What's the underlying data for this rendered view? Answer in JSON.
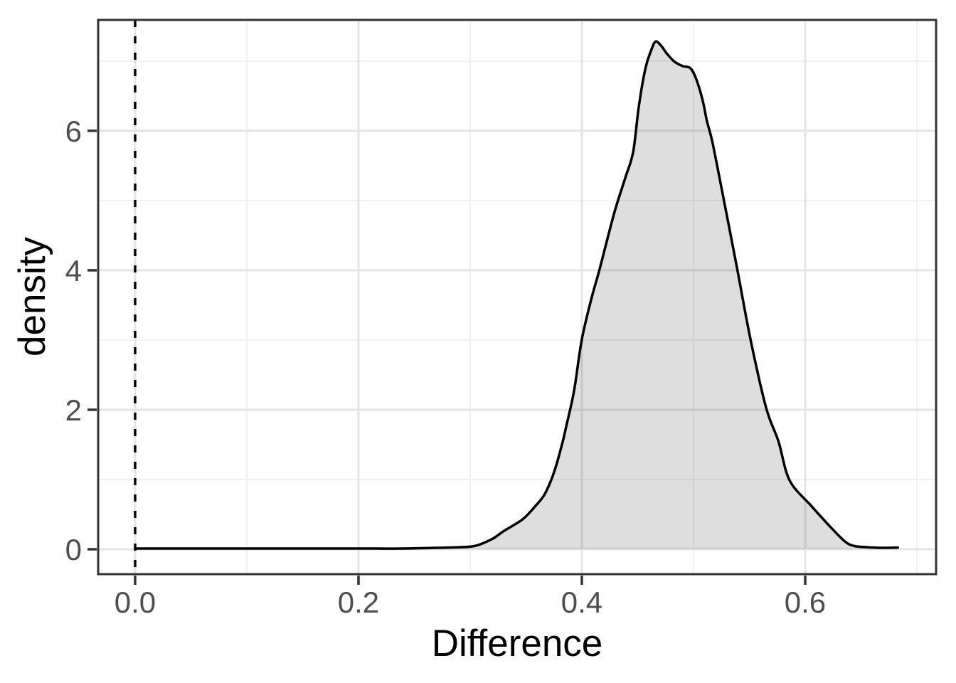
{
  "chart_data": {
    "type": "area",
    "subtype": "density-curve",
    "title": "",
    "xlabel": "Difference",
    "ylabel": "density",
    "xlim": [
      -0.0331,
      0.7172
    ],
    "ylim": [
      -0.357,
      7.59
    ],
    "grid": true,
    "legend": false,
    "x_ticks": {
      "values": [
        0.0,
        0.2,
        0.4,
        0.6
      ],
      "labels": [
        "0.0",
        "0.2",
        "0.4",
        "0.6"
      ]
    },
    "y_ticks": {
      "values": [
        0,
        2,
        4,
        6
      ],
      "labels": [
        "0",
        "2",
        "4",
        "6"
      ]
    },
    "x_minor_gridlines": [
      0.1,
      0.3,
      0.5,
      0.7
    ],
    "y_minor_gridlines": [
      1,
      3,
      5,
      7
    ],
    "reference_line": {
      "orientation": "vertical",
      "x": 0.0,
      "style": "dashed",
      "color": "#000000"
    },
    "series": [
      {
        "name": "density",
        "x": [
          0.0,
          0.05,
          0.1,
          0.15,
          0.2,
          0.24,
          0.27,
          0.29,
          0.305,
          0.32,
          0.33,
          0.347,
          0.359,
          0.366,
          0.372,
          0.377,
          0.383,
          0.386,
          0.393,
          0.4,
          0.409,
          0.416,
          0.429,
          0.439,
          0.446,
          0.451,
          0.457,
          0.462,
          0.466,
          0.471,
          0.476,
          0.483,
          0.49,
          0.497,
          0.502,
          0.508,
          0.512,
          0.517,
          0.527,
          0.539,
          0.551,
          0.565,
          0.576,
          0.586,
          0.605,
          0.622,
          0.635,
          0.643,
          0.655,
          0.67,
          0.683
        ],
        "y": [
          0.01,
          0.01,
          0.01,
          0.01,
          0.01,
          0.01,
          0.02,
          0.03,
          0.05,
          0.15,
          0.26,
          0.43,
          0.63,
          0.77,
          0.97,
          1.2,
          1.55,
          1.76,
          2.27,
          3.01,
          3.62,
          4.02,
          4.82,
          5.33,
          5.7,
          6.35,
          6.9,
          7.15,
          7.28,
          7.22,
          7.11,
          6.99,
          6.93,
          6.9,
          6.76,
          6.45,
          6.14,
          5.83,
          5.02,
          4.03,
          3.01,
          2.03,
          1.55,
          0.99,
          0.63,
          0.33,
          0.12,
          0.05,
          0.03,
          0.02,
          0.025
        ]
      }
    ],
    "peak": {
      "x": 0.466,
      "density": 7.28
    }
  },
  "style": {
    "background": "#ffffff",
    "panel_border": "#333333",
    "grid_major": "#e4e4e4",
    "grid_minor": "#f1f1f1",
    "tick_mark": "#333333",
    "tick_label_color": "#4d4d4d",
    "axis_title_color": "#000000",
    "curve_stroke": "#000000",
    "area_fill": "rgba(0,0,0,0.13)",
    "reference_line_color": "#000000"
  }
}
